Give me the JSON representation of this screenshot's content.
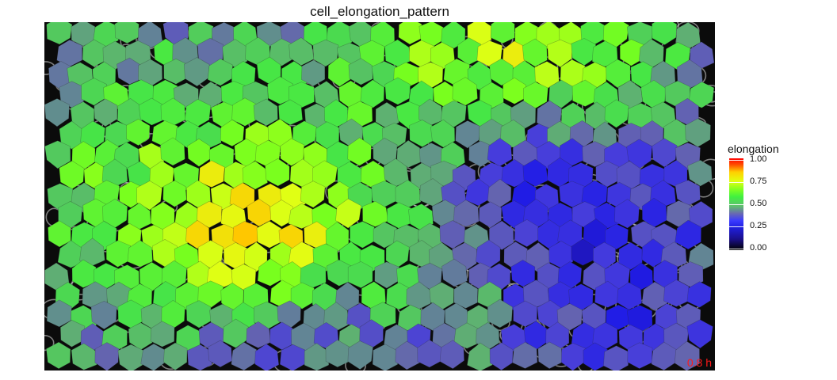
{
  "chart_data": {
    "type": "heatmap",
    "title": "cell_elongation_pattern",
    "annotation": "0.8 h",
    "legend": {
      "title": "elongation",
      "ticks": [
        "0.00",
        "0.25",
        "0.50",
        "0.75",
        "1.00"
      ],
      "placement": "right"
    },
    "colors": {
      "background": "#0b0b0b",
      "annotation": "#ff1a1a",
      "scale": [
        "#000000",
        "#2020e0",
        "#5fbf6f",
        "#40f040",
        "#e0ff10",
        "#ff0000"
      ]
    },
    "value_range": [
      0,
      1
    ]
  }
}
